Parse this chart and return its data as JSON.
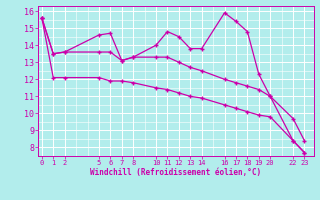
{
  "xlabel": "Windchill (Refroidissement éolien,°C)",
  "bg_color": "#b2edec",
  "grid_color": "#ffffff",
  "line_color": "#cc00aa",
  "ylim": [
    7.5,
    16.3
  ],
  "yticks": [
    8,
    9,
    10,
    11,
    12,
    13,
    14,
    15,
    16
  ],
  "xlim": [
    -0.3,
    23.8
  ],
  "xtick_positions": [
    0,
    1,
    2,
    5,
    6,
    7,
    8,
    10,
    11,
    12,
    13,
    14,
    16,
    17,
    18,
    19,
    20,
    22,
    23
  ],
  "xtick_labels": [
    "0",
    "1",
    "2",
    "5",
    "6",
    "7",
    "8",
    "10",
    "11",
    "12",
    "13",
    "14",
    "16",
    "17",
    "18",
    "19",
    "20",
    "22",
    "23"
  ],
  "line1_x": [
    0,
    1,
    2,
    5,
    6,
    7,
    8,
    10,
    11,
    12,
    13,
    14,
    16,
    17,
    18,
    19,
    20,
    22,
    23
  ],
  "line1_y": [
    15.6,
    13.5,
    13.6,
    14.6,
    14.7,
    13.1,
    13.3,
    14.0,
    14.8,
    14.5,
    13.8,
    13.8,
    15.9,
    15.4,
    14.8,
    12.3,
    11.0,
    8.4,
    7.7
  ],
  "line2_x": [
    0,
    1,
    2,
    5,
    6,
    7,
    8,
    10,
    11,
    12,
    13,
    14,
    16,
    17,
    18,
    19,
    20,
    22,
    23
  ],
  "line2_y": [
    15.6,
    13.5,
    13.6,
    13.6,
    13.6,
    13.1,
    13.3,
    13.3,
    13.3,
    13.0,
    12.7,
    12.5,
    12.0,
    11.8,
    11.6,
    11.4,
    11.0,
    9.7,
    8.4
  ],
  "line3_x": [
    0,
    1,
    2,
    5,
    6,
    7,
    8,
    10,
    11,
    12,
    13,
    14,
    16,
    17,
    18,
    19,
    20,
    22,
    23
  ],
  "line3_y": [
    15.6,
    12.1,
    12.1,
    12.1,
    11.9,
    11.9,
    11.8,
    11.5,
    11.4,
    11.2,
    11.0,
    10.9,
    10.5,
    10.3,
    10.1,
    9.9,
    9.8,
    8.4,
    7.7
  ],
  "figsize": [
    3.2,
    2.0
  ],
  "dpi": 100
}
